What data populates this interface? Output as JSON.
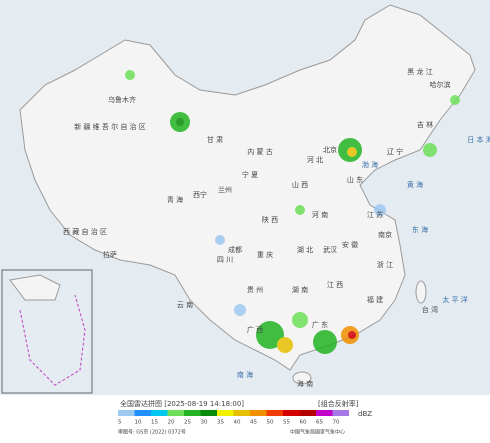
{
  "map": {
    "labels": [
      "新 疆 维 吾 尔 自 治 区",
      "西 藏 自 治 区",
      "青 海",
      "内 蒙 古",
      "黑 龙 江",
      "吉 林",
      "辽 宁",
      "甘 肃",
      "四 川",
      "云 南",
      "广 西",
      "广 东",
      "湖 南",
      "湖 北",
      "河 南",
      "山 东",
      "江 苏",
      "安 徽",
      "江 西",
      "福 建",
      "浙 江",
      "贵 州",
      "陕 西",
      "山 西",
      "河 北",
      "重 庆",
      "宁 夏",
      "台 湾",
      "海 南",
      "乌鲁木齐",
      "拉萨",
      "西宁",
      "兰州",
      "成都",
      "武汉",
      "南京",
      "北京",
      "哈尔滨",
      "日 本 海",
      "黄 海",
      "东 海",
      "太 平 洋",
      "南 海",
      "渤 海"
    ]
  },
  "legend": {
    "title": "全国雷达拼图 [2025-08-19 14:18:00]",
    "product": "[组合反射率]",
    "unit": "dBZ",
    "levels": [
      5,
      10,
      15,
      20,
      25,
      30,
      35,
      40,
      45,
      50,
      55,
      60,
      65,
      70
    ],
    "colors": [
      "#9dc8f0",
      "#1e90ff",
      "#00c8f0",
      "#6ee05a",
      "#22b422",
      "#0a8c0a",
      "#f0f000",
      "#e6c000",
      "#f09000",
      "#f03c00",
      "#d40000",
      "#b40000",
      "#c000c8",
      "#a678e6"
    ],
    "approval": "审图号: GS京 (2022) 0372号",
    "source": "中国气象局国家气象中心"
  }
}
